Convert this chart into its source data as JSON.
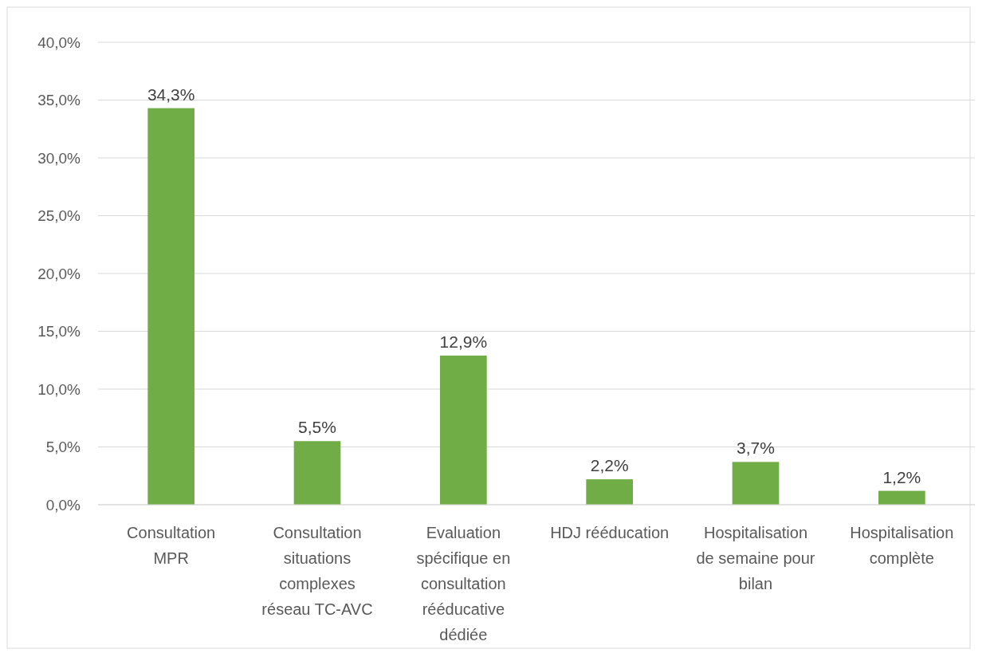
{
  "chart_data": {
    "type": "bar",
    "categories": [
      "Consultation MPR",
      "Consultation situations complexes réseau TC-AVC",
      "Evaluation spécifique en consultation rééducative dédiée",
      "HDJ rééducation",
      "Hospitalisation de semaine pour bilan",
      "Hospitalisation complète"
    ],
    "values": [
      34.3,
      5.5,
      12.9,
      2.2,
      3.7,
      1.2
    ],
    "value_labels": [
      "34,3%",
      "5,5%",
      "12,9%",
      "2,2%",
      "3,7%",
      "1,2%"
    ],
    "color": "#70ad47",
    "ylim": [
      0,
      40
    ],
    "yticks": [
      {
        "value": 0,
        "label": "0,0%"
      },
      {
        "value": 5,
        "label": "5,0%"
      },
      {
        "value": 10,
        "label": "10,0%"
      },
      {
        "value": 15,
        "label": "15,0%"
      },
      {
        "value": 20,
        "label": "20,0%"
      },
      {
        "value": 25,
        "label": "25,0%"
      },
      {
        "value": 30,
        "label": "30,0%"
      },
      {
        "value": 35,
        "label": "35,0%"
      },
      {
        "value": 40,
        "label": "40,0%"
      }
    ],
    "grid": "y"
  }
}
